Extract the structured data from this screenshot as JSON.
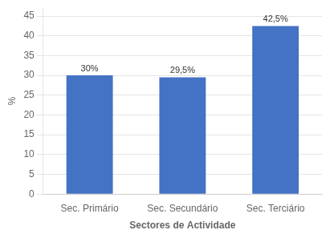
{
  "chart_data": {
    "type": "bar",
    "categories": [
      "Sec. Primário",
      "Sec. Secundário",
      "Sec. Terciário"
    ],
    "values": [
      30.0,
      29.5,
      42.5
    ],
    "value_labels": [
      "30%",
      "29,5%",
      "42,5%"
    ],
    "data_labels": true,
    "color": "#4472C4",
    "xlabel": "Sectores de Actividade",
    "ylabel": "%",
    "ylim": [
      0,
      47
    ],
    "yticks": [
      0,
      5,
      10,
      15,
      20,
      25,
      30,
      35,
      40,
      45
    ],
    "grid": true
  }
}
